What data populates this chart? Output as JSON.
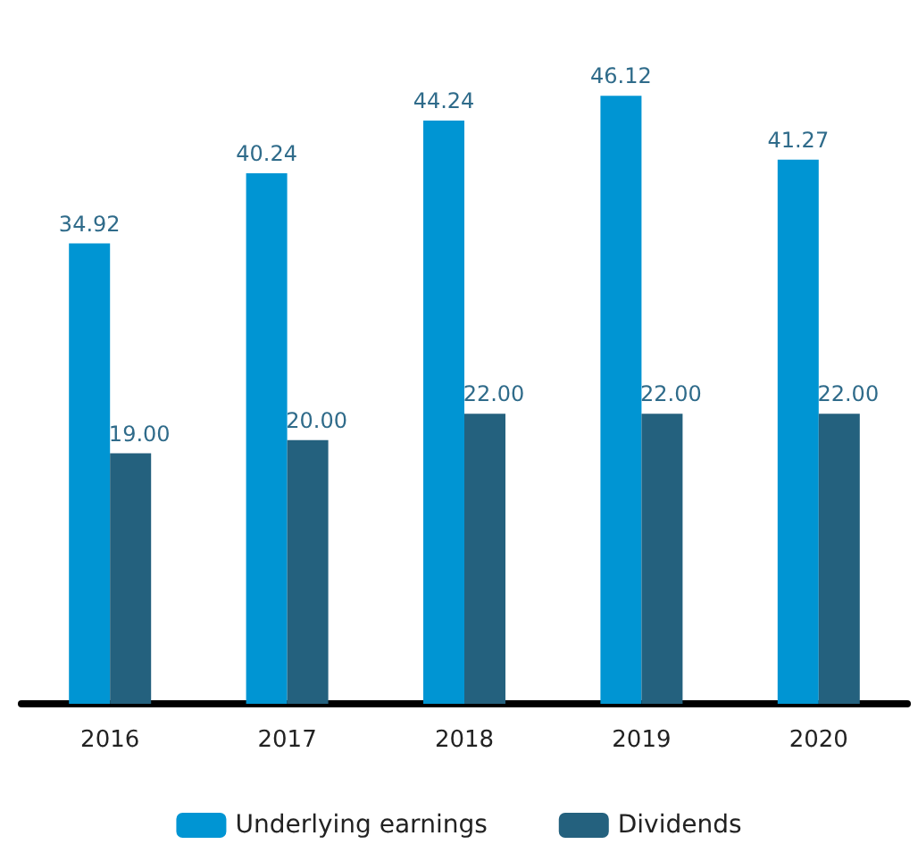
{
  "chart_data": {
    "type": "bar",
    "categories": [
      "2016",
      "2017",
      "2018",
      "2019",
      "2020"
    ],
    "series": [
      {
        "name": "Underlying earnings",
        "color": "#0095d3",
        "values": [
          34.92,
          40.24,
          44.24,
          46.12,
          41.27
        ],
        "value_labels": [
          "34.92",
          "40.24",
          "44.24",
          "46.12",
          "41.27"
        ]
      },
      {
        "name": "Dividends",
        "color": "#24617e",
        "values": [
          19.0,
          20.0,
          22.0,
          22.0,
          22.0
        ],
        "value_labels": [
          "19.00",
          "20.00",
          "22.00",
          "22.00",
          "22.00"
        ]
      }
    ],
    "legend": "bottom",
    "grid": false
  }
}
